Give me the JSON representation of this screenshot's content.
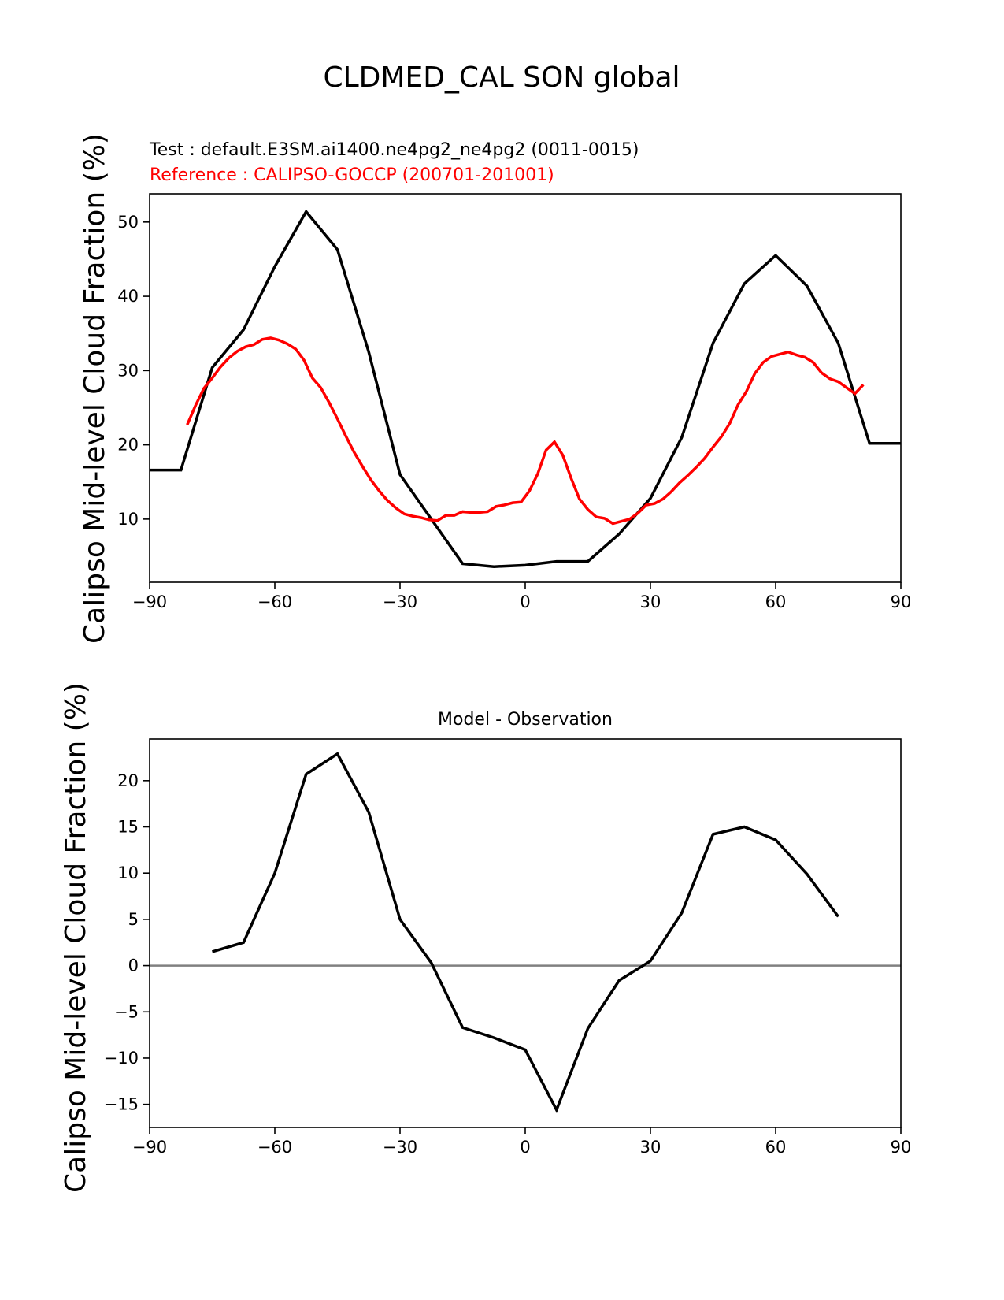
{
  "figure_title": "CLDMED_CAL SON global",
  "chart_data": [
    {
      "type": "line",
      "panel": "top",
      "subtitle_test": "Test : default.E3SM.ai1400.ne4pg2_ne4pg2 (0011-0015)",
      "subtitle_ref": "Reference : CALIPSO-GOCCP (200701-201001)",
      "ylabel": "Calipso Mid-level Cloud Fraction (%)",
      "xlabel": "",
      "xlim": [
        -90,
        90
      ],
      "ylim": [
        1.5,
        53.8
      ],
      "xticks": [
        -90,
        -60,
        -30,
        0,
        30,
        60,
        90
      ],
      "xtick_labels": [
        "−90",
        "−60",
        "−30",
        "0",
        "30",
        "60",
        "90"
      ],
      "yticks": [
        10,
        20,
        30,
        40,
        50
      ],
      "ytick_labels": [
        "10",
        "20",
        "30",
        "40",
        "50"
      ],
      "series": [
        {
          "name": "Test",
          "color": "#000000",
          "x": [
            -90,
            -82.5,
            -75,
            -67.5,
            -60,
            -52.5,
            -45,
            -37.5,
            -30,
            -22.5,
            -15,
            -7.5,
            0,
            7.5,
            15,
            22.5,
            30,
            37.5,
            45,
            52.5,
            60,
            67.5,
            75,
            82.5,
            90
          ],
          "y": [
            16.6,
            16.6,
            30.4,
            35.5,
            44.0,
            51.4,
            46.3,
            32.5,
            16.0,
            10.0,
            4.0,
            3.6,
            3.8,
            4.3,
            4.3,
            8.0,
            12.8,
            21.0,
            33.7,
            41.7,
            45.5,
            41.4,
            33.7,
            20.2,
            20.2
          ]
        },
        {
          "name": "Reference",
          "color": "#ff0000",
          "x": [
            -81,
            -79,
            -77,
            -75,
            -73,
            -71,
            -69,
            -67,
            -65,
            -63,
            -61,
            -59,
            -57,
            -55,
            -53,
            -51,
            -49,
            -47,
            -45,
            -43,
            -41,
            -39,
            -37,
            -35,
            -33,
            -31,
            -29,
            -27,
            -25,
            -23,
            -21,
            -19,
            -17,
            -15,
            -13,
            -11,
            -9,
            -7,
            -5,
            -3,
            -1,
            1,
            3,
            5,
            7,
            9,
            11,
            13,
            15,
            17,
            19,
            21,
            23,
            25,
            27,
            29,
            31,
            33,
            35,
            37,
            39,
            41,
            43,
            45,
            47,
            49,
            51,
            53,
            55,
            57,
            59,
            61,
            63,
            65,
            67,
            69,
            71,
            73,
            75,
            77,
            79,
            81
          ],
          "y": [
            22.7,
            25.3,
            27.6,
            29.0,
            30.5,
            31.7,
            32.6,
            33.2,
            33.5,
            34.2,
            34.4,
            34.1,
            33.6,
            32.9,
            31.4,
            29.0,
            27.7,
            25.7,
            23.5,
            21.2,
            19.0,
            17.1,
            15.3,
            13.8,
            12.5,
            11.5,
            10.7,
            10.4,
            10.2,
            9.9,
            9.8,
            10.5,
            10.5,
            11.0,
            10.9,
            10.9,
            11.0,
            11.7,
            11.9,
            12.2,
            12.3,
            13.8,
            16.1,
            19.3,
            20.4,
            18.6,
            15.5,
            12.7,
            11.3,
            10.3,
            10.1,
            9.4,
            9.7,
            10.0,
            10.8,
            11.9,
            12.1,
            12.7,
            13.7,
            14.9,
            15.9,
            17.0,
            18.2,
            19.7,
            21.1,
            22.9,
            25.4,
            27.2,
            29.6,
            31.1,
            31.9,
            32.2,
            32.5,
            32.1,
            31.8,
            31.1,
            29.7,
            28.9,
            28.5,
            27.7,
            26.9,
            28.1
          ]
        }
      ]
    },
    {
      "type": "line",
      "panel": "bottom",
      "title": "Model - Observation",
      "ylabel": "Calipso Mid-level Cloud Fraction (%)",
      "xlabel": "",
      "xlim": [
        -90,
        90
      ],
      "ylim": [
        -17.5,
        24.5
      ],
      "xticks": [
        -90,
        -60,
        -30,
        0,
        30,
        60,
        90
      ],
      "xtick_labels": [
        "−90",
        "−60",
        "−30",
        "0",
        "30",
        "60",
        "90"
      ],
      "yticks": [
        -15,
        -10,
        -5,
        0,
        5,
        10,
        15,
        20
      ],
      "ytick_labels": [
        "−15",
        "−10",
        "−5",
        "0",
        "5",
        "10",
        "15",
        "20"
      ],
      "zero_line": {
        "y": 0,
        "color": "#808080"
      },
      "series": [
        {
          "name": "Model - Observation",
          "color": "#000000",
          "x": [
            -75,
            -67.5,
            -60,
            -52.5,
            -45,
            -37.5,
            -30,
            -22.5,
            -15,
            -7.5,
            0,
            7.5,
            15,
            22.5,
            30,
            37.5,
            45,
            52.5,
            60,
            67.5,
            75
          ],
          "y": [
            1.5,
            2.5,
            10.0,
            20.7,
            22.9,
            16.6,
            5.0,
            0.3,
            -6.7,
            -7.8,
            -9.1,
            -15.6,
            -6.8,
            -1.6,
            0.5,
            5.7,
            14.2,
            15.0,
            13.6,
            9.9,
            5.3
          ]
        }
      ]
    }
  ]
}
